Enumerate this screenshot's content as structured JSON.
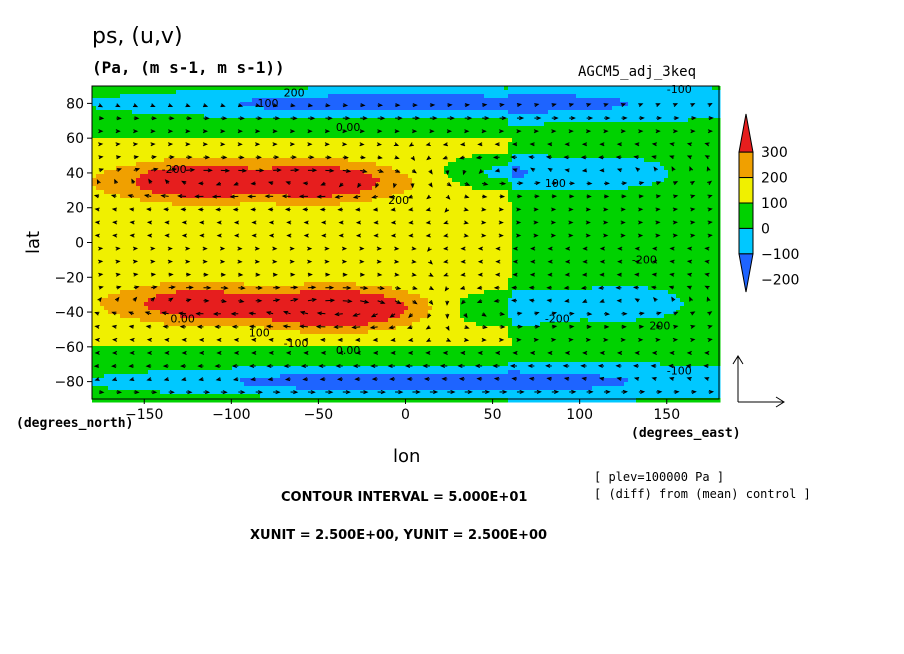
{
  "chart_data": {
    "type": "heatmap",
    "title": "ps, (u,v)",
    "subtitle": "(Pa, (m s-1, m s-1))",
    "experiment": "AGCM5_adj_3keq",
    "xlabel": "lon",
    "ylabel": "lat",
    "x_units": "(degrees_east)",
    "y_units": "(degrees_north)",
    "xlim": [
      -180,
      180
    ],
    "ylim": [
      -90,
      90
    ],
    "x_ticks": [
      -150,
      -100,
      -50,
      0,
      50,
      100,
      150
    ],
    "y_ticks": [
      -80,
      -60,
      -40,
      -20,
      0,
      20,
      40,
      60,
      80
    ],
    "colorbar": {
      "levels": [
        -300,
        -200,
        -100,
        0,
        100,
        200,
        300
      ],
      "tick_labels": [
        "300",
        "200",
        "100",
        "0",
        "−100",
        "−200"
      ],
      "colors": [
        "#1e64ff",
        "#00c8ff",
        "#00d200",
        "#f0f000",
        "#f0a000",
        "#e61e1e"
      ]
    },
    "contour_labels": [
      "200",
      "100",
      "0.00",
      "-100",
      "-200"
    ],
    "features": [
      {
        "lon": -120,
        "lat": 35,
        "value": 230
      },
      {
        "lon": -50,
        "lat": 35,
        "value": 220
      },
      {
        "lon": -120,
        "lat": -35,
        "value": 180
      },
      {
        "lon": -40,
        "lat": -38,
        "value": 320
      },
      {
        "lon": 55,
        "lat": 40,
        "value": -170
      },
      {
        "lon": 55,
        "lat": -38,
        "value": -160
      },
      {
        "lon": 125,
        "lat": -35,
        "value": -130
      },
      {
        "lon": 120,
        "lat": 40,
        "value": -110
      },
      {
        "lon": 0,
        "lat": 80,
        "value": -230
      },
      {
        "lon": 0,
        "lat": -80,
        "value": -230
      }
    ],
    "grid": false
  },
  "annotations": {
    "plev": "[ plev=100000 Pa ]",
    "diff": "[ (diff) from (mean) control ]",
    "contour_interval": "CONTOUR INTERVAL = 5.000E+01",
    "units": "XUNIT = 2.500E+00, YUNIT = 2.500E+00"
  }
}
